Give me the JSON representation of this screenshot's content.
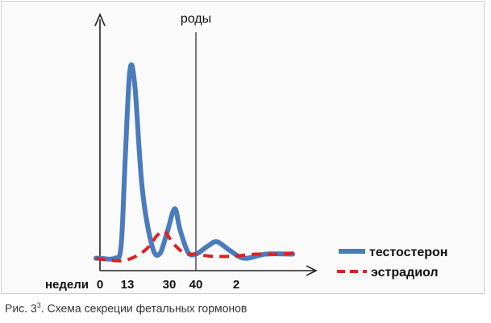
{
  "chart_data": {
    "type": "line",
    "title": "",
    "xlabel": "недели",
    "ylabel": "",
    "x_tick_labels": [
      "0",
      "13",
      "30",
      "40",
      "2"
    ],
    "annotations": [
      {
        "label": "роды",
        "at_x": 40
      }
    ],
    "series": [
      {
        "name": "тестостерон",
        "color": "#4a7bbd",
        "style": "solid",
        "points": [
          [
            -2,
            0.06
          ],
          [
            0,
            0.06
          ],
          [
            7,
            0.06
          ],
          [
            10,
            0.12
          ],
          [
            12,
            0.55
          ],
          [
            14,
            0.97
          ],
          [
            16,
            0.9
          ],
          [
            19,
            0.4
          ],
          [
            23,
            0.12
          ],
          [
            26,
            0.08
          ],
          [
            29,
            0.18
          ],
          [
            32,
            0.3
          ],
          [
            34,
            0.2
          ],
          [
            37,
            0.09
          ],
          [
            40,
            0.08
          ],
          [
            44,
            0.12
          ],
          [
            47,
            0.14
          ],
          [
            51,
            0.1
          ],
          [
            56,
            0.06
          ],
          [
            63,
            0.08
          ],
          [
            72,
            0.08
          ]
        ]
      },
      {
        "name": "эстрадиол",
        "color": "#e02020",
        "style": "dashed",
        "points": [
          [
            -2,
            0.06
          ],
          [
            5,
            0.05
          ],
          [
            12,
            0.05
          ],
          [
            18,
            0.08
          ],
          [
            22,
            0.12
          ],
          [
            25,
            0.17
          ],
          [
            28,
            0.19
          ],
          [
            31,
            0.14
          ],
          [
            34,
            0.1
          ],
          [
            37,
            0.08
          ],
          [
            40,
            0.08
          ],
          [
            45,
            0.07
          ],
          [
            52,
            0.07
          ],
          [
            60,
            0.08
          ],
          [
            68,
            0.08
          ],
          [
            74,
            0.09
          ]
        ]
      }
    ],
    "legend_position": "bottom-right",
    "grid": false
  },
  "caption": {
    "text_main": "Рис. 3",
    "text_sup": "3",
    "text_rest": ". Схема секреции фетальных гормонов"
  }
}
